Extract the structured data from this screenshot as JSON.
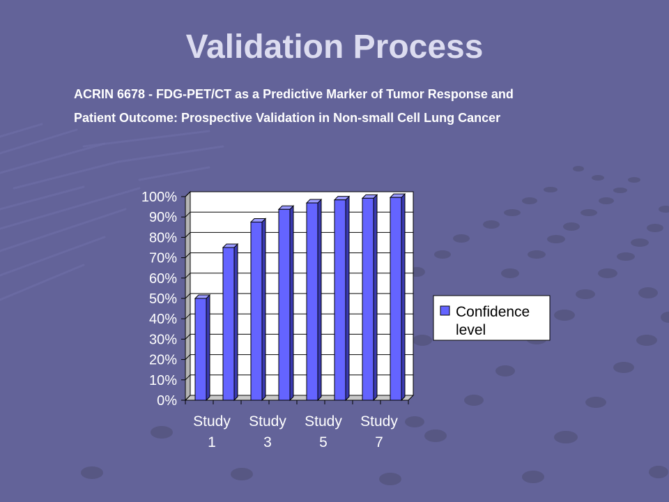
{
  "slide": {
    "title": "Validation Process",
    "subtitle_line1": "ACRIN 6678 - FDG-PET/CT as a Predictive Marker of Tumor Response and",
    "subtitle_line2": "Patient Outcome: Prospective Validation in Non-small Cell Lung Cancer"
  },
  "colors": {
    "background": "#636399",
    "title": "#dcdcf0",
    "bar_front": "#6464ff",
    "bar_side": "#3a3ab0",
    "bar_top": "#9a9aff",
    "plot_area": "#ffffff"
  },
  "chart_data": {
    "type": "bar",
    "style": "3d-column",
    "categories": [
      [
        "Study",
        "1"
      ],
      [
        "",
        ""
      ],
      [
        "Study",
        "3"
      ],
      [
        "",
        ""
      ],
      [
        "Study",
        "5"
      ],
      [
        "",
        ""
      ],
      [
        "Study",
        "7"
      ],
      [
        "",
        ""
      ]
    ],
    "series": [
      {
        "name": "Confidence level",
        "values": [
          50,
          75,
          87.5,
          93.75,
          96.9,
          98.4,
          99.2,
          99.6
        ]
      }
    ],
    "y_tick_labels": [
      "0%",
      "10%",
      "20%",
      "30%",
      "40%",
      "50%",
      "60%",
      "70%",
      "80%",
      "90%",
      "100%"
    ],
    "ylim": [
      0,
      100
    ],
    "grid": true,
    "legend_position": "right",
    "legend_lines": [
      "Confidence",
      "level"
    ]
  }
}
